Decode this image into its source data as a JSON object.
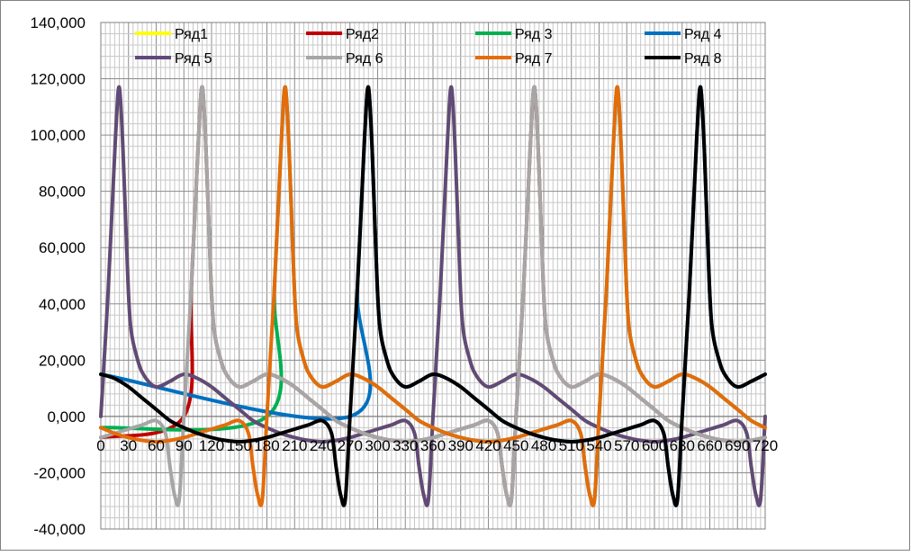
{
  "chart_data": {
    "type": "line",
    "title": "",
    "xlabel": "",
    "ylabel": "",
    "xlim": [
      0,
      720
    ],
    "ylim": [
      -40000,
      140000
    ],
    "x_ticks": [
      0,
      30,
      60,
      90,
      120,
      150,
      180,
      210,
      240,
      270,
      300,
      330,
      360,
      390,
      420,
      450,
      480,
      510,
      540,
      570,
      600,
      630,
      660,
      690,
      720
    ],
    "x_tick_labels": [
      "0",
      "30",
      "60",
      "90",
      "120",
      "150",
      "180",
      "210",
      "240",
      "270",
      "300",
      "330",
      "360",
      "390",
      "420",
      "450",
      "480",
      "510",
      "540",
      "570",
      "600",
      "630",
      "660",
      "690",
      "720"
    ],
    "y_ticks": [
      -40000,
      -20000,
      0,
      20000,
      40000,
      60000,
      80000,
      100000,
      120000,
      140000
    ],
    "y_tick_labels": [
      "-40,000",
      "-20,000",
      "0,000",
      "20,000",
      "40,000",
      "60,000",
      "80,000",
      "100,000",
      "120,000",
      "140,000"
    ],
    "grid": true,
    "legend_position": "top",
    "base_shape": {
      "x": [
        0,
        8,
        16,
        20,
        24,
        28,
        32,
        40,
        48,
        60,
        75,
        90,
        105,
        120,
        135,
        150,
        165,
        180,
        195,
        210,
        225,
        240,
        255,
        270,
        285,
        300,
        315,
        330,
        340,
        345,
        350,
        355,
        360
      ],
      "y": [
        0,
        45000,
        100000,
        117000,
        95000,
        60000,
        33000,
        20000,
        14000,
        10500,
        12500,
        15000,
        13500,
        10500,
        6500,
        2500,
        -1500,
        -4000,
        -6000,
        -7500,
        -8500,
        -9000,
        -8500,
        -7500,
        -6000,
        -4500,
        -3000,
        -1500,
        -6000,
        -18000,
        -28000,
        -29500,
        -3000
      ]
    },
    "series": [
      {
        "name": "Ряд1",
        "color": "#ffff00",
        "shift": 360
      },
      {
        "name": "Ряд2",
        "color": "#c00000",
        "shift": 450
      },
      {
        "name": "Ряд 3",
        "color": "#00b050",
        "shift": 540
      },
      {
        "name": "Ряд 4",
        "color": "#0070c0",
        "shift": 630
      },
      {
        "name": "Ряд 5",
        "color": "#604a7b",
        "shift": 0
      },
      {
        "name": "Ряд 6",
        "color": "#a6a6a6",
        "shift": 90
      },
      {
        "name": "Ряд 7",
        "color": "#e46c0a",
        "shift": 180
      },
      {
        "name": "Ряд 8",
        "color": "#000000",
        "shift": 270
      }
    ]
  }
}
